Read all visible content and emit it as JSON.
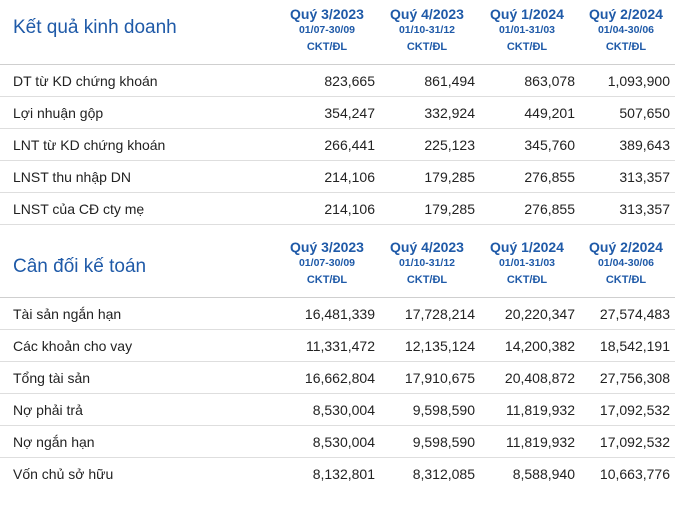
{
  "sections": [
    {
      "title": "Kết quả kinh doanh",
      "periods": [
        {
          "quarter": "Quý 3/2023",
          "range": "01/07-30/09",
          "unit": "CKT/ĐL"
        },
        {
          "quarter": "Quý 4/2023",
          "range": "01/10-31/12",
          "unit": "CKT/ĐL"
        },
        {
          "quarter": "Quý 1/2024",
          "range": "01/01-31/03",
          "unit": "CKT/ĐL"
        },
        {
          "quarter": "Quý 2/2024",
          "range": "01/04-30/06",
          "unit": "CKT/ĐL"
        }
      ],
      "rows": [
        {
          "label": "DT từ KD chứng khoán",
          "values": [
            "823,665",
            "861,494",
            "863,078",
            "1,093,900"
          ]
        },
        {
          "label": "Lợi nhuận gộp",
          "values": [
            "354,247",
            "332,924",
            "449,201",
            "507,650"
          ]
        },
        {
          "label": "LNT từ KD chứng khoán",
          "values": [
            "266,441",
            "225,123",
            "345,760",
            "389,643"
          ]
        },
        {
          "label": "LNST thu nhập DN",
          "values": [
            "214,106",
            "179,285",
            "276,855",
            "313,357"
          ]
        },
        {
          "label": "LNST của CĐ cty mẹ",
          "values": [
            "214,106",
            "179,285",
            "276,855",
            "313,357"
          ]
        }
      ]
    },
    {
      "title": "Cân đối kế toán",
      "periods": [
        {
          "quarter": "Quý 3/2023",
          "range": "01/07-30/09",
          "unit": "CKT/ĐL"
        },
        {
          "quarter": "Quý 4/2023",
          "range": "01/10-31/12",
          "unit": "CKT/ĐL"
        },
        {
          "quarter": "Quý 1/2024",
          "range": "01/01-31/03",
          "unit": "CKT/ĐL"
        },
        {
          "quarter": "Quý 2/2024",
          "range": "01/04-30/06",
          "unit": "CKT/ĐL"
        }
      ],
      "rows": [
        {
          "label": "Tài sản ngắn hạn",
          "values": [
            "16,481,339",
            "17,728,214",
            "20,220,347",
            "27,574,483"
          ]
        },
        {
          "label": "Các khoản cho vay",
          "values": [
            "11,331,472",
            "12,135,124",
            "14,200,382",
            "18,542,191"
          ]
        },
        {
          "label": "Tổng tài sản",
          "values": [
            "16,662,804",
            "17,910,675",
            "20,408,872",
            "27,756,308"
          ]
        },
        {
          "label": "Nợ phải trả",
          "values": [
            "8,530,004",
            "9,598,590",
            "11,819,932",
            "17,092,532"
          ]
        },
        {
          "label": "Nợ ngắn hạn",
          "values": [
            "8,530,004",
            "9,598,590",
            "11,819,932",
            "17,092,532"
          ]
        },
        {
          "label": "Vốn chủ sở hữu",
          "values": [
            "8,132,801",
            "8,312,085",
            "8,588,940",
            "10,663,776"
          ]
        }
      ]
    }
  ]
}
